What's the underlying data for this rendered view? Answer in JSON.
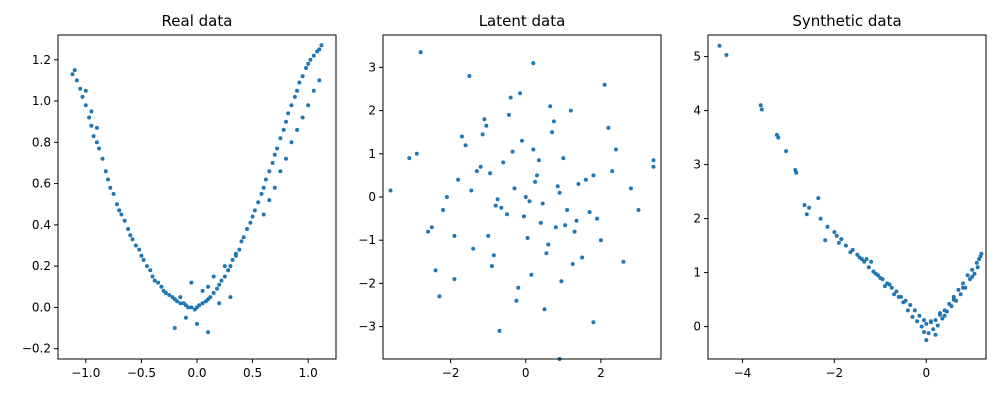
{
  "chart_data": [
    {
      "type": "scatter",
      "title": "Real data",
      "xlabel": "",
      "ylabel": "",
      "xlim": [
        -1.25,
        1.25
      ],
      "ylim": [
        -0.25,
        1.32
      ],
      "xticks": [
        -1.0,
        -0.5,
        0.0,
        0.5,
        1.0
      ],
      "xtick_labels": [
        "−1.0",
        "−0.5",
        "0.0",
        "0.5",
        "1.0"
      ],
      "yticks": [
        -0.2,
        0.0,
        0.2,
        0.4,
        0.6,
        0.8,
        1.0,
        1.2
      ],
      "ytick_labels": [
        "−0.2",
        "0.0",
        "0.2",
        "0.4",
        "0.6",
        "0.8",
        "1.0",
        "1.2"
      ],
      "color": "#1f77b4",
      "series": [
        {
          "x": [
            -1.12,
            -1.1,
            -1.08,
            -1.05,
            -1.03,
            -1.0,
            -0.97,
            -0.95,
            -0.93,
            -0.9,
            -0.88,
            -0.85,
            -0.82,
            -0.8,
            -0.78,
            -0.75,
            -0.72,
            -0.7,
            -0.68,
            -0.65,
            -0.62,
            -0.6,
            -0.58,
            -0.55,
            -0.52,
            -0.5,
            -0.48,
            -0.45,
            -0.42,
            -0.4,
            -0.38,
            -0.35,
            -0.32,
            -0.3,
            -0.28,
            -0.25,
            -0.22,
            -0.2,
            -0.18,
            -0.15,
            -0.12,
            -0.1,
            -0.08,
            -0.05,
            -0.02,
            0.0,
            0.02,
            0.05,
            0.08,
            0.1,
            0.12,
            0.15,
            0.18,
            0.2,
            0.22,
            0.25,
            0.28,
            0.3,
            0.32,
            0.35,
            0.38,
            0.4,
            0.42,
            0.45,
            0.48,
            0.5,
            0.52,
            0.55,
            0.58,
            0.6,
            0.62,
            0.65,
            0.68,
            0.7,
            0.72,
            0.75,
            0.78,
            0.8,
            0.82,
            0.85,
            0.88,
            0.9,
            0.92,
            0.95,
            0.98,
            1.0,
            1.02,
            1.05,
            1.08,
            1.1,
            1.12,
            1.1,
            1.05,
            1.0,
            0.95,
            0.9,
            0.85,
            0.8,
            0.75,
            0.7,
            0.65,
            0.6,
            -0.2,
            -0.1,
            0.0,
            0.1,
            0.2,
            0.3,
            -0.15,
            0.05,
            0.15,
            0.25,
            -0.05,
            0.35,
            -1.0,
            -0.95,
            -0.9,
            0.1,
            0.28
          ],
          "y": [
            1.13,
            1.15,
            1.1,
            1.06,
            1.02,
            0.98,
            0.92,
            0.88,
            0.83,
            0.8,
            0.77,
            0.72,
            0.66,
            0.62,
            0.58,
            0.55,
            0.5,
            0.47,
            0.45,
            0.42,
            0.38,
            0.35,
            0.33,
            0.3,
            0.28,
            0.25,
            0.23,
            0.2,
            0.18,
            0.15,
            0.13,
            0.12,
            0.1,
            0.08,
            0.07,
            0.06,
            0.05,
            0.04,
            0.03,
            0.02,
            0.02,
            0.01,
            0.0,
            0.0,
            -0.01,
            0.0,
            0.01,
            0.02,
            0.03,
            0.04,
            0.05,
            0.07,
            0.09,
            0.11,
            0.13,
            0.15,
            0.18,
            0.2,
            0.23,
            0.26,
            0.28,
            0.32,
            0.34,
            0.38,
            0.41,
            0.44,
            0.47,
            0.51,
            0.55,
            0.58,
            0.62,
            0.66,
            0.7,
            0.74,
            0.77,
            0.82,
            0.86,
            0.9,
            0.94,
            0.98,
            1.02,
            1.05,
            1.09,
            1.12,
            1.16,
            1.18,
            1.2,
            1.22,
            1.24,
            1.25,
            1.27,
            1.1,
            1.05,
            0.98,
            0.92,
            0.86,
            0.8,
            0.72,
            0.66,
            0.58,
            0.52,
            0.45,
            -0.1,
            -0.05,
            -0.08,
            0.1,
            0.02,
            0.05,
            0.05,
            0.08,
            0.15,
            0.2,
            0.12,
            0.25,
            1.05,
            0.95,
            0.87,
            -0.12,
            0.18
          ]
        }
      ]
    },
    {
      "type": "scatter",
      "title": "Latent data",
      "xlabel": "",
      "ylabel": "",
      "xlim": [
        -3.8,
        3.6
      ],
      "ylim": [
        -3.75,
        3.75
      ],
      "xticks": [
        -2,
        0,
        2
      ],
      "xtick_labels": [
        "−2",
        "0",
        "2"
      ],
      "yticks": [
        -3,
        -2,
        -1,
        0,
        1,
        2,
        3
      ],
      "ytick_labels": [
        "−3",
        "−2",
        "−1",
        "0",
        "1",
        "2",
        "3"
      ],
      "color": "#1f77b4",
      "series": [
        {
          "x": [
            -2.8,
            -3.6,
            3.4,
            3.4,
            0.9,
            -0.7,
            -1.5,
            1.8,
            -2.3,
            2.1,
            -1.9,
            0.2,
            -0.4,
            0.5,
            -1.1,
            1.2,
            -0.2,
            0.7,
            -0.9,
            1.5,
            -1.6,
            2.4,
            -2.6,
            0.0,
            0.3,
            -0.5,
            0.8,
            -1.3,
            1.0,
            -0.1,
            0.6,
            -0.8,
            1.4,
            -1.8,
            1.9,
            -2.2,
            2.6,
            -2.9,
            0.1,
            -0.3,
            0.4,
            -0.6,
            0.9,
            -1.0,
            1.1,
            -1.2,
            1.3,
            -1.4,
            1.6,
            -1.7,
            2.0,
            -2.1,
            2.2,
            -2.4,
            2.8,
            -0.05,
            0.25,
            -0.35,
            0.55,
            -0.75,
            0.85,
            -0.95,
            1.05,
            -1.15,
            1.25,
            0.15,
            -0.45,
            0.65,
            -0.25,
            0.45,
            1.7,
            -1.05,
            0.35,
            -0.65,
            0.75,
            0.95,
            -0.15,
            1.35,
            -1.45,
            0.05,
            -0.85,
            2.3,
            -2.5,
            3.0,
            -3.1,
            0.2,
            1.8,
            -1.9
          ],
          "y": [
            3.35,
            0.15,
            0.85,
            0.7,
            -3.75,
            -3.1,
            2.8,
            -2.9,
            -2.3,
            2.6,
            -1.9,
            3.1,
            2.3,
            -2.6,
            1.8,
            2.0,
            -2.1,
            1.5,
            -1.6,
            -1.4,
            1.2,
            1.1,
            -0.8,
            0.0,
            0.5,
            -0.4,
            -0.7,
            0.6,
            0.9,
            1.3,
            -1.1,
            -0.2,
            0.3,
            0.4,
            -0.5,
            -0.3,
            -1.5,
            1.0,
            -0.1,
            0.2,
            -0.6,
            0.8,
            0.1,
            -0.9,
            -0.3,
            0.7,
            -0.8,
            -1.2,
            0.4,
            1.4,
            -1.0,
            0.0,
            1.6,
            -1.7,
            0.2,
            -0.45,
            0.35,
            1.05,
            -1.3,
            -0.05,
            0.25,
            0.55,
            -0.65,
            1.45,
            -1.55,
            -1.8,
            1.9,
            2.1,
            -2.4,
            -0.15,
            -0.35,
            1.65,
            0.85,
            -0.25,
            1.75,
            -1.95,
            2.4,
            -0.55,
            0.15,
            -0.95,
            -1.35,
            0.6,
            -0.7,
            -0.3,
            0.9,
            1.1,
            0.5,
            -0.9
          ]
        }
      ]
    },
    {
      "type": "scatter",
      "title": "Synthetic data",
      "xlabel": "",
      "ylabel": "",
      "xlim": [
        -4.75,
        1.3
      ],
      "ylim": [
        -0.6,
        5.4
      ],
      "xticks": [
        -4,
        -2,
        0
      ],
      "xtick_labels": [
        "−4",
        "−2",
        "0"
      ],
      "yticks": [
        0,
        1,
        2,
        3,
        4,
        5
      ],
      "ytick_labels": [
        "0",
        "1",
        "2",
        "3",
        "4",
        "5"
      ],
      "color": "#1f77b4",
      "series": [
        {
          "x": [
            -4.5,
            -4.35,
            -3.6,
            -3.58,
            -3.25,
            -3.22,
            -3.05,
            -2.85,
            -2.83,
            -2.65,
            -2.55,
            -2.35,
            -2.3,
            -2.15,
            -2.0,
            -1.95,
            -1.85,
            -1.75,
            -1.6,
            -1.5,
            -1.45,
            -1.35,
            -1.25,
            -1.15,
            -1.05,
            -0.95,
            -0.85,
            -0.75,
            -0.65,
            -0.55,
            -0.45,
            -0.35,
            -0.25,
            -0.15,
            -0.05,
            0.0,
            0.1,
            0.2,
            0.3,
            0.4,
            0.5,
            0.6,
            0.7,
            0.8,
            0.9,
            1.0,
            1.1,
            1.15,
            1.2,
            -1.2,
            -1.0,
            -0.8,
            -0.6,
            -0.4,
            -0.2,
            0.05,
            0.25,
            0.45,
            0.65,
            0.85,
            1.05,
            -0.3,
            -0.1,
            0.15,
            0.35,
            0.55,
            0.75,
            0.95,
            1.12,
            -0.5,
            -0.7,
            -0.9,
            -1.1,
            -1.3,
            0.0,
            0.2,
            0.4,
            -0.05,
            0.1,
            0.3,
            0.6,
            0.8,
            1.0,
            1.18,
            -2.6,
            -2.2,
            -1.9,
            -1.65,
            -1.4
          ],
          "y": [
            5.2,
            5.03,
            4.1,
            4.02,
            3.55,
            3.5,
            3.25,
            2.9,
            2.85,
            2.25,
            2.2,
            2.38,
            2.0,
            1.85,
            1.75,
            1.68,
            1.62,
            1.5,
            1.42,
            1.33,
            1.28,
            1.2,
            1.1,
            1.02,
            0.95,
            0.88,
            0.8,
            0.72,
            0.65,
            0.55,
            0.48,
            0.4,
            0.3,
            0.2,
            0.12,
            0.05,
            0.08,
            0.12,
            0.22,
            0.3,
            0.42,
            0.55,
            0.68,
            0.8,
            0.95,
            1.05,
            1.18,
            1.25,
            1.35,
            1.2,
            0.9,
            0.78,
            0.55,
            0.3,
            0.1,
            -0.12,
            0.02,
            0.28,
            0.48,
            0.72,
            0.98,
            0.18,
            0.0,
            -0.05,
            0.15,
            0.38,
            0.6,
            0.88,
            1.1,
            0.45,
            0.6,
            0.75,
            0.98,
            1.25,
            -0.25,
            -0.15,
            0.2,
            -0.1,
            0.1,
            0.25,
            0.5,
            0.72,
            0.92,
            1.3,
            2.08,
            1.6,
            1.55,
            1.38,
            1.25
          ]
        }
      ]
    }
  ]
}
